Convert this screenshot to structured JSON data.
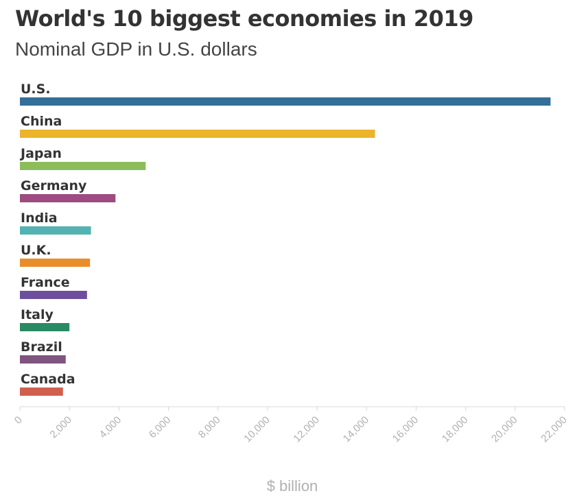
{
  "chart_data": {
    "type": "bar",
    "orientation": "horizontal",
    "title": "World's 10 biggest economies in 2019",
    "subtitle": "Nominal GDP in U.S. dollars",
    "xlabel": "$ billion",
    "ylabel": "",
    "xlim": [
      0,
      22000
    ],
    "ticks": [
      0,
      2000,
      4000,
      6000,
      8000,
      10000,
      12000,
      14000,
      16000,
      18000,
      20000,
      22000
    ],
    "tick_labels": [
      "0",
      "2,000",
      "4,000",
      "6,000",
      "8,000",
      "10,000",
      "12,000",
      "14,000",
      "16,000",
      "18,000",
      "20,000",
      "22,000"
    ],
    "grid": false,
    "legend": "none",
    "categories": [
      "U.S.",
      "China",
      "Japan",
      "Germany",
      "India",
      "U.K.",
      "France",
      "Italy",
      "Brazil",
      "Canada"
    ],
    "values": [
      21430,
      14340,
      5080,
      3860,
      2870,
      2830,
      2710,
      2000,
      1850,
      1740
    ],
    "colors": [
      "#336f99",
      "#ecb42c",
      "#8cbd5a",
      "#9e4b82",
      "#52b3b2",
      "#e98d2b",
      "#6e4f9e",
      "#2a8a63",
      "#7e557f",
      "#d0604d"
    ]
  }
}
